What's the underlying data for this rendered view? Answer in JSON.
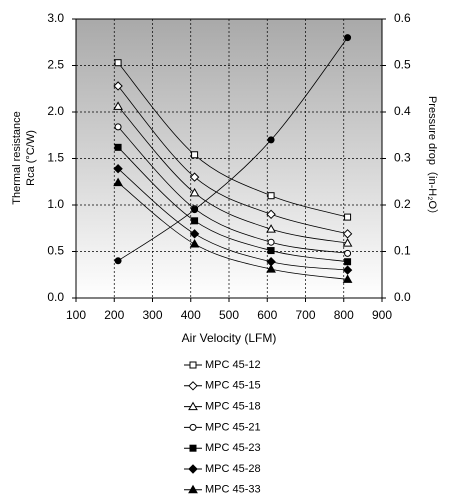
{
  "chart_data": {
    "type": "line",
    "x_label": "Air Velocity (LFM)",
    "y_label": [
      "Thermal resistance",
      "Rca (°C/W)"
    ],
    "y2_label": "Pressure drop（in-H₂O）",
    "xlim": [
      100,
      900
    ],
    "xticks": [
      100,
      200,
      300,
      400,
      500,
      600,
      700,
      800,
      900
    ],
    "ylim": [
      0,
      3
    ],
    "yticks": [
      {
        "value": 0,
        "label": "0.0"
      },
      0.5,
      {
        "value": 1,
        "label": "1.0"
      },
      1.5,
      {
        "value": 2,
        "label": "2.0"
      },
      2.5,
      {
        "value": 3,
        "label": "3.0"
      }
    ],
    "y2lim": [
      0,
      0.6
    ],
    "y2ticks": [
      {
        "value": 0,
        "label": "0.0"
      },
      0.1,
      0.2,
      0.3,
      0.4,
      0.5,
      0.6
    ],
    "grid": true,
    "legend": "bottom",
    "x": [
      210,
      410,
      610,
      810
    ],
    "series": [
      {
        "name": "MPC 45-12",
        "color": "#000000",
        "marker": "square-open",
        "values": [
          2.53,
          1.54,
          1.1,
          0.87
        ]
      },
      {
        "name": "MPC 45-15",
        "color": "#000000",
        "marker": "diamond-open",
        "values": [
          2.28,
          1.3,
          0.9,
          0.69
        ]
      },
      {
        "name": "MPC 45-18",
        "color": "#000000",
        "marker": "triangle-open",
        "values": [
          2.06,
          1.13,
          0.74,
          0.59
        ]
      },
      {
        "name": "MPC 45-21",
        "color": "#000000",
        "marker": "circle-open",
        "values": [
          1.84,
          0.96,
          0.6,
          0.48
        ]
      },
      {
        "name": "MPC 45-23",
        "color": "#000000",
        "marker": "square",
        "values": [
          1.62,
          0.83,
          0.51,
          0.39
        ]
      },
      {
        "name": "MPC 45-28",
        "color": "#000000",
        "marker": "diamond",
        "values": [
          1.39,
          0.69,
          0.39,
          0.3
        ]
      },
      {
        "name": "MPC 45-33",
        "color": "#000000",
        "marker": "triangle",
        "values": [
          1.24,
          0.58,
          0.31,
          0.2
        ]
      },
      {
        "color": "#000000",
        "marker": "circle",
        "axis": "y2",
        "values": [
          0.08,
          0.19,
          0.34,
          0.56
        ]
      }
    ]
  }
}
